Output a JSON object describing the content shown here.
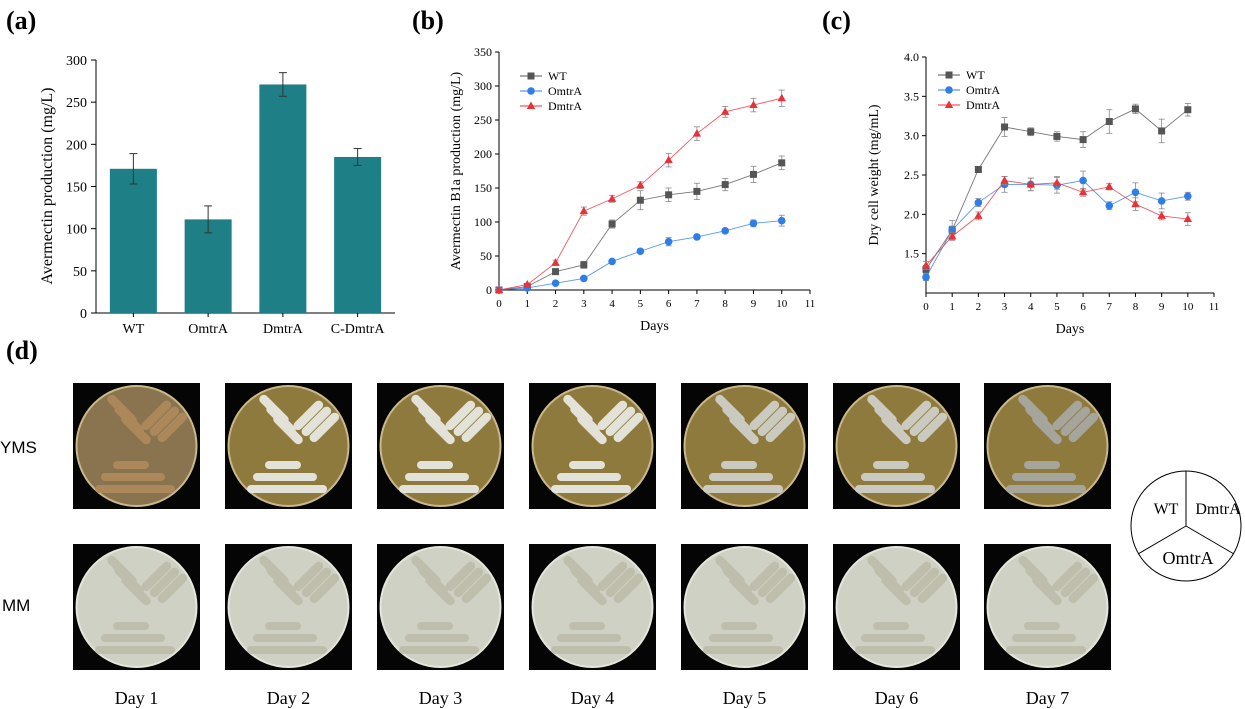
{
  "panel_labels": [
    "(a)",
    "(b)",
    "(c)",
    "(d)"
  ],
  "colors": {
    "bar": "#1f7f86",
    "wt": "#555555",
    "omtra": "#2f7ee8",
    "dmtra": "#e8323a"
  },
  "chart_data": [
    {
      "type": "bar",
      "title": "",
      "xlabel": "",
      "ylabel": "Avermectin production (mg/L)",
      "categories": [
        "WT",
        "OmtrA",
        "DmtrA",
        "C-DmtrA"
      ],
      "values": [
        171,
        111,
        271,
        185
      ],
      "errors": [
        18,
        16,
        14,
        10
      ],
      "ylim": [
        0,
        300
      ],
      "yticks": [
        0,
        50,
        100,
        150,
        200,
        250,
        300
      ],
      "grid": false
    },
    {
      "type": "line",
      "title": "",
      "xlabel": "Days",
      "ylabel": "Avermectin B1a production (mg/L)",
      "x": [
        0,
        1,
        2,
        3,
        4,
        5,
        6,
        7,
        8,
        9,
        10
      ],
      "xlim": [
        0,
        11
      ],
      "xticks": [
        0,
        1,
        2,
        3,
        4,
        5,
        6,
        7,
        8,
        9,
        10,
        11
      ],
      "ylim": [
        0,
        350
      ],
      "yticks": [
        0,
        50,
        100,
        150,
        200,
        250,
        300,
        350
      ],
      "legend_position": "top-left",
      "grid": false,
      "series": [
        {
          "name": "WT",
          "marker": "square",
          "values": [
            0,
            5,
            27,
            37,
            97,
            132,
            140,
            145,
            155,
            170,
            187
          ],
          "errors": [
            2,
            2,
            4,
            5,
            6,
            14,
            10,
            12,
            9,
            12,
            10
          ]
        },
        {
          "name": "OmtrA",
          "marker": "circle",
          "values": [
            0,
            3,
            10,
            17,
            42,
            57,
            71,
            78,
            87,
            98,
            102
          ],
          "errors": [
            1,
            1,
            2,
            3,
            3,
            3,
            6,
            3,
            3,
            5,
            8
          ]
        },
        {
          "name": "DmtrA",
          "marker": "triangle",
          "values": [
            0,
            8,
            40,
            116,
            134,
            154,
            191,
            230,
            262,
            272,
            282
          ],
          "errors": [
            2,
            2,
            4,
            6,
            5,
            5,
            10,
            10,
            8,
            10,
            12
          ]
        }
      ]
    },
    {
      "type": "line",
      "title": "",
      "xlabel": "Days",
      "ylabel": "Dry cell weight (mg/mL)",
      "x": [
        0,
        1,
        2,
        3,
        4,
        5,
        6,
        7,
        8,
        9,
        10
      ],
      "xlim": [
        0,
        11
      ],
      "xticks": [
        0,
        1,
        2,
        3,
        4,
        5,
        6,
        7,
        8,
        9,
        10,
        11
      ],
      "ylim": [
        1.0,
        4.0
      ],
      "yticks": [
        "1.5",
        "2.0",
        "2.5",
        "3.0",
        "3.5",
        "4.0"
      ],
      "legend_position": "top-left",
      "grid": false,
      "series": [
        {
          "name": "WT",
          "marker": "square",
          "values": [
            1.3,
            1.8,
            2.57,
            3.11,
            3.05,
            2.99,
            2.95,
            3.18,
            3.34,
            3.06,
            3.33
          ],
          "errors": [
            0.05,
            0.05,
            0.03,
            0.12,
            0.05,
            0.06,
            0.1,
            0.15,
            0.06,
            0.15,
            0.08
          ]
        },
        {
          "name": "OmtrA",
          "marker": "circle",
          "values": [
            1.2,
            1.8,
            2.15,
            2.38,
            2.38,
            2.37,
            2.43,
            2.11,
            2.28,
            2.17,
            2.23
          ],
          "errors": [
            0.04,
            0.12,
            0.05,
            0.1,
            0.08,
            0.1,
            0.12,
            0.05,
            0.12,
            0.1,
            0.05
          ]
        },
        {
          "name": "DmtrA",
          "marker": "triangle",
          "values": [
            1.35,
            1.72,
            1.98,
            2.43,
            2.38,
            2.4,
            2.28,
            2.35,
            2.13,
            1.98,
            1.94
          ],
          "errors": [
            0.05,
            0.05,
            0.05,
            0.05,
            0.08,
            0.08,
            0.05,
            0.04,
            0.08,
            0.05,
            0.08
          ]
        }
      ]
    }
  ],
  "plates": {
    "rows": [
      "YMS",
      "MM"
    ],
    "days": [
      "Day 1",
      "Day 2",
      "Day 3",
      "Day 4",
      "Day 5",
      "Day 6",
      "Day 7"
    ],
    "key": [
      "WT",
      "DmtrA",
      "OmtrA"
    ]
  }
}
